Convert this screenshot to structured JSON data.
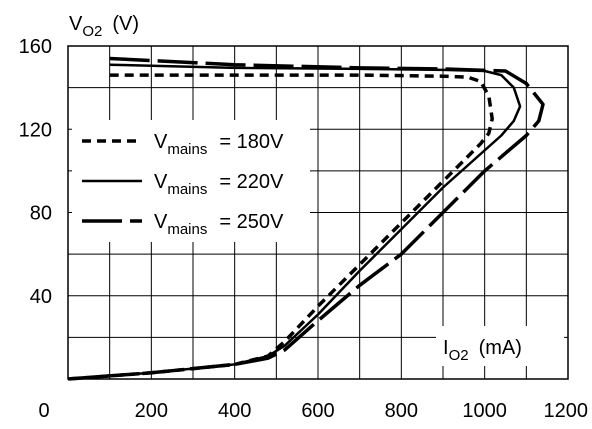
{
  "chart_data": {
    "type": "line",
    "xlim": [
      0,
      1200
    ],
    "ylim": [
      0,
      160
    ],
    "x_ticks": [
      {
        "value": 0,
        "label": "0"
      },
      {
        "value": 200,
        "label": "200"
      },
      {
        "value": 400,
        "label": "400"
      },
      {
        "value": 600,
        "label": "600"
      },
      {
        "value": 800,
        "label": "800"
      },
      {
        "value": 1000,
        "label": "1000"
      },
      {
        "value": 1200,
        "label": "1200"
      }
    ],
    "y_ticks": [
      {
        "value": 40,
        "label": "40"
      },
      {
        "value": 80,
        "label": "80"
      },
      {
        "value": 120,
        "label": "120"
      },
      {
        "value": 160,
        "label": "160"
      }
    ],
    "ylabel": {
      "main": "V",
      "sub": "O2",
      "unit": "(V)"
    },
    "xlabel": {
      "main": "I",
      "sub": "O2",
      "unit": "(mA)"
    },
    "grid": true,
    "legend_position": "left-middle",
    "series": [
      {
        "name": {
          "main": "V",
          "sub": "mains",
          "value": "= 180V"
        },
        "style": "dashed",
        "color": "#000000",
        "points": [
          [
            100,
            146
          ],
          [
            400,
            146
          ],
          [
            700,
            146
          ],
          [
            900,
            145.5
          ],
          [
            960,
            145
          ],
          [
            990,
            143
          ],
          [
            1010,
            136
          ],
          [
            1018,
            125
          ],
          [
            1010,
            118
          ],
          [
            990,
            113
          ],
          [
            900,
            95
          ],
          [
            800,
            75
          ],
          [
            700,
            55
          ],
          [
            600,
            35
          ],
          [
            520,
            18
          ],
          [
            480,
            11
          ],
          [
            400,
            7
          ],
          [
            200,
            3
          ],
          [
            0,
            0
          ]
        ]
      },
      {
        "name": {
          "main": "V",
          "sub": "mains",
          "value": "= 220V"
        },
        "style": "solid",
        "color": "#000000",
        "points": [
          [
            100,
            151
          ],
          [
            400,
            149.5
          ],
          [
            700,
            149
          ],
          [
            900,
            148.5
          ],
          [
            1000,
            148
          ],
          [
            1040,
            146
          ],
          [
            1070,
            140
          ],
          [
            1085,
            131
          ],
          [
            1070,
            124
          ],
          [
            1040,
            117
          ],
          [
            900,
            92
          ],
          [
            800,
            72
          ],
          [
            700,
            52
          ],
          [
            600,
            31
          ],
          [
            520,
            16
          ],
          [
            480,
            11
          ],
          [
            400,
            7
          ],
          [
            200,
            3
          ],
          [
            0,
            0
          ]
        ]
      },
      {
        "name": {
          "main": "V",
          "sub": "mains",
          "value": "= 250V"
        },
        "style": "long-dash",
        "color": "#000000",
        "points": [
          [
            100,
            154
          ],
          [
            400,
            151
          ],
          [
            700,
            149.5
          ],
          [
            900,
            149
          ],
          [
            1050,
            148
          ],
          [
            1100,
            142
          ],
          [
            1140,
            132
          ],
          [
            1130,
            124
          ],
          [
            1100,
            117
          ],
          [
            1000,
            100
          ],
          [
            900,
            80
          ],
          [
            800,
            60
          ],
          [
            700,
            45
          ],
          [
            600,
            28
          ],
          [
            520,
            14
          ],
          [
            480,
            10
          ],
          [
            400,
            7
          ],
          [
            200,
            3
          ],
          [
            0,
            0
          ]
        ]
      }
    ]
  }
}
